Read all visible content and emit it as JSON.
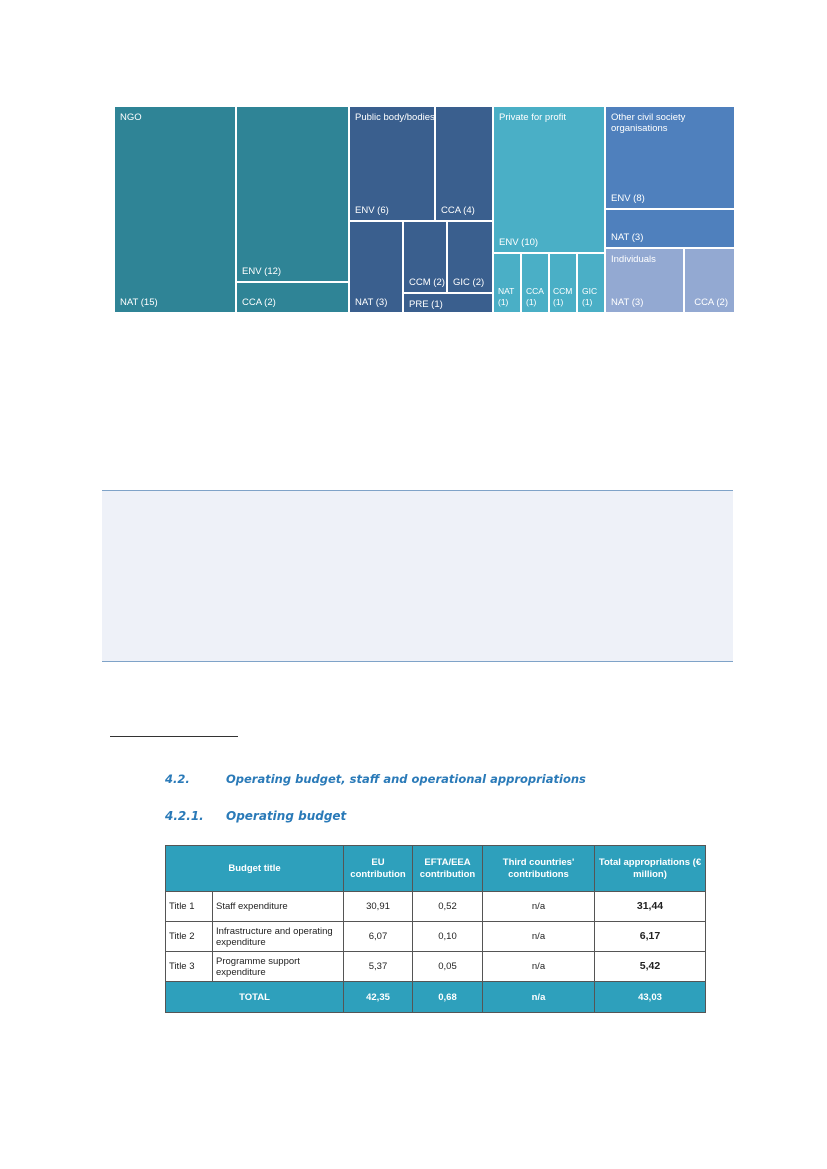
{
  "treemap": {
    "ngo": {
      "label": "NGO",
      "env": "ENV (12)",
      "nat": "NAT (15)",
      "cca": "CCA (2)"
    },
    "public": {
      "label": "Public body/bodies",
      "env": "ENV (6)",
      "cca": "CCA (4)",
      "nat": "NAT (3)",
      "ccm": "CCM (2)",
      "gic": "GIC (2)",
      "pre": "PRE (1)"
    },
    "private": {
      "label": "Private for profit",
      "env": "ENV (10)",
      "nat": "NAT (1)",
      "cca": "CCA (1)",
      "ccm": "CCM (1)",
      "gic": "GIC (1)"
    },
    "other": {
      "label": "Other civil society organisations",
      "env": "ENV (8)",
      "nat": "NAT (3)"
    },
    "individuals": {
      "label": "Individuals",
      "nat": "NAT (3)",
      "cca": "CCA (2)"
    },
    "colors": {
      "ngo": "#2f8496",
      "public": "#3a5f8e",
      "private": "#4aafc6",
      "other": "#4f80bd",
      "individuals": "#93a9d2"
    }
  },
  "sections": {
    "h42_num": "4.2.",
    "h42_title": "Operating budget, staff and operational appropriations",
    "h421_num": "4.2.1.",
    "h421_title": "Operating budget"
  },
  "budget_table": {
    "headers": [
      "Budget title",
      "EU contribution",
      "EFTA/EEA contribution",
      "Third countries' contributions",
      "Total appropriations (€ million)"
    ],
    "rows": [
      {
        "title": "Title 1",
        "desc": "Staff expenditure",
        "eu": "30,91",
        "efta": "0,52",
        "third": "n/a",
        "total": "31,44"
      },
      {
        "title": "Title 2",
        "desc": "Infrastructure and operating expenditure",
        "eu": "6,07",
        "efta": "0,10",
        "third": "n/a",
        "total": "6,17"
      },
      {
        "title": "Title 3",
        "desc": "Programme support expenditure",
        "eu": "5,37",
        "efta": "0,05",
        "third": "n/a",
        "total": "5,42"
      }
    ],
    "total": {
      "label": "TOTAL",
      "eu": "42,35",
      "efta": "0,68",
      "third": "n/a",
      "total": "43,03"
    }
  }
}
